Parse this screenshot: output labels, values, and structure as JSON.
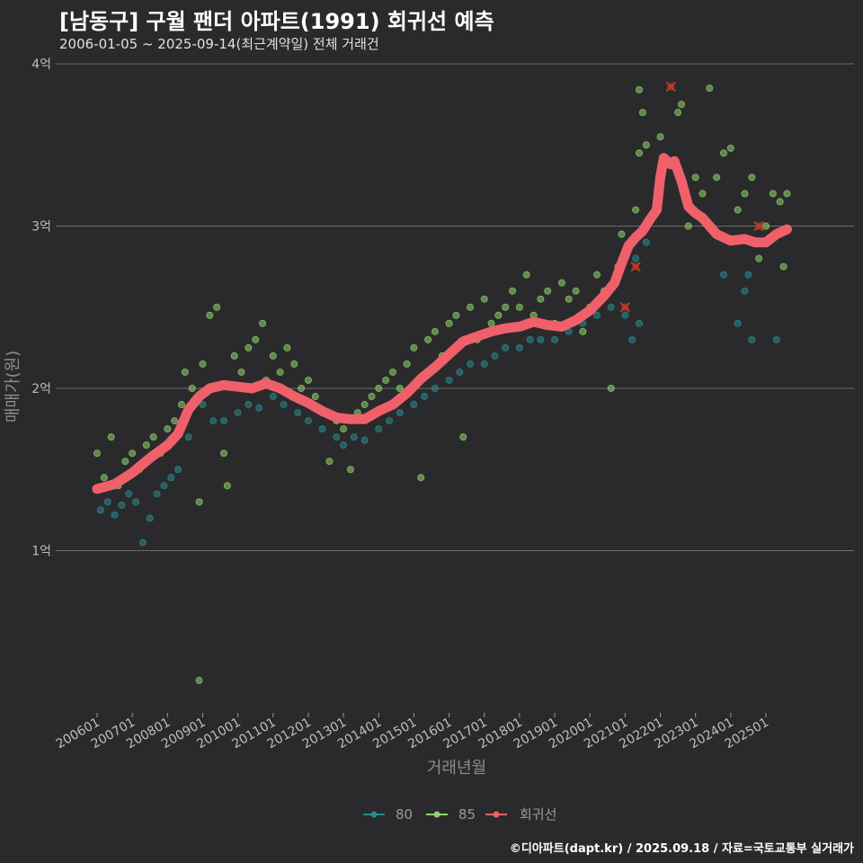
{
  "header": {
    "title": "[남동구] 구월 팬더 아파트(1991) 회귀선 예측",
    "subtitle": "2006-01-05 ~ 2025-09-14(최근계약일) 전체 거래건"
  },
  "footer": {
    "credit": "©디아파트(dapt.kr) / 2025.09.18 / 자료=국토교통부 실거래가"
  },
  "colors": {
    "background": "#2a2a2c",
    "grid": "#6b6b6b",
    "s80": "#2a8a8f",
    "s85": "#8fd46a",
    "regression": "#f0606a"
  },
  "chart_data": {
    "type": "scatter",
    "title": "[남동구] 구월 팬더 아파트(1991) 회귀선 예측",
    "xlabel": "거래년월",
    "ylabel": "매매가(원)",
    "x_range": [
      2006.0,
      2025.8
    ],
    "ylim": [
      0,
      4
    ],
    "y_ticks": [
      {
        "value": 1,
        "label": "1억"
      },
      {
        "value": 2,
        "label": "2억"
      },
      {
        "value": 3,
        "label": "3억"
      },
      {
        "value": 4,
        "label": "4억"
      }
    ],
    "x_ticks": [
      {
        "value": 2006.0,
        "label": "200601"
      },
      {
        "value": 2007.0,
        "label": "200701"
      },
      {
        "value": 2008.0,
        "label": "200801"
      },
      {
        "value": 2009.0,
        "label": "200901"
      },
      {
        "value": 2010.0,
        "label": "201001"
      },
      {
        "value": 2011.0,
        "label": "201101"
      },
      {
        "value": 2012.0,
        "label": "201201"
      },
      {
        "value": 2013.0,
        "label": "201301"
      },
      {
        "value": 2014.0,
        "label": "201401"
      },
      {
        "value": 2015.0,
        "label": "201501"
      },
      {
        "value": 2016.0,
        "label": "201601"
      },
      {
        "value": 2017.0,
        "label": "201701"
      },
      {
        "value": 2018.0,
        "label": "201801"
      },
      {
        "value": 2019.0,
        "label": "201901"
      },
      {
        "value": 2020.0,
        "label": "202001"
      },
      {
        "value": 2021.0,
        "label": "202101"
      },
      {
        "value": 2022.0,
        "label": "202201"
      },
      {
        "value": 2023.0,
        "label": "202301"
      },
      {
        "value": 2024.0,
        "label": "202401"
      },
      {
        "value": 2025.0,
        "label": "202501"
      }
    ],
    "legend": [
      "80",
      "85",
      "회귀선"
    ],
    "series": [
      {
        "name": "80",
        "color": "#2a8a8f",
        "points": [
          [
            2006.1,
            1.25
          ],
          [
            2006.3,
            1.3
          ],
          [
            2006.5,
            1.22
          ],
          [
            2006.7,
            1.28
          ],
          [
            2006.9,
            1.35
          ],
          [
            2007.1,
            1.3
          ],
          [
            2007.3,
            1.05
          ],
          [
            2007.5,
            1.2
          ],
          [
            2007.7,
            1.35
          ],
          [
            2007.9,
            1.4
          ],
          [
            2008.1,
            1.45
          ],
          [
            2008.3,
            1.5
          ],
          [
            2008.6,
            1.7
          ],
          [
            2009.0,
            1.9
          ],
          [
            2009.3,
            1.8
          ],
          [
            2009.6,
            1.8
          ],
          [
            2010.0,
            1.85
          ],
          [
            2010.3,
            1.9
          ],
          [
            2010.6,
            1.88
          ],
          [
            2011.0,
            1.95
          ],
          [
            2011.3,
            1.9
          ],
          [
            2011.7,
            1.85
          ],
          [
            2012.0,
            1.8
          ],
          [
            2012.4,
            1.75
          ],
          [
            2012.8,
            1.7
          ],
          [
            2013.0,
            1.65
          ],
          [
            2013.3,
            1.7
          ],
          [
            2013.6,
            1.68
          ],
          [
            2014.0,
            1.75
          ],
          [
            2014.3,
            1.8
          ],
          [
            2014.6,
            1.85
          ],
          [
            2015.0,
            1.9
          ],
          [
            2015.3,
            1.95
          ],
          [
            2015.6,
            2.0
          ],
          [
            2016.0,
            2.05
          ],
          [
            2016.3,
            2.1
          ],
          [
            2016.6,
            2.15
          ],
          [
            2017.0,
            2.15
          ],
          [
            2017.3,
            2.2
          ],
          [
            2017.6,
            2.25
          ],
          [
            2018.0,
            2.25
          ],
          [
            2018.3,
            2.3
          ],
          [
            2018.6,
            2.3
          ],
          [
            2019.0,
            2.3
          ],
          [
            2019.4,
            2.35
          ],
          [
            2019.8,
            2.4
          ],
          [
            2020.2,
            2.45
          ],
          [
            2020.6,
            2.5
          ],
          [
            2021.0,
            2.45
          ],
          [
            2021.2,
            2.3
          ],
          [
            2021.4,
            2.4
          ],
          [
            2021.3,
            2.8
          ],
          [
            2021.6,
            2.9
          ],
          [
            2023.8,
            2.7
          ],
          [
            2024.2,
            2.4
          ],
          [
            2024.4,
            2.6
          ],
          [
            2024.6,
            2.3
          ],
          [
            2024.5,
            2.7
          ],
          [
            2025.3,
            2.3
          ]
        ]
      },
      {
        "name": "85",
        "color": "#8fd46a",
        "points": [
          [
            2006.0,
            1.6
          ],
          [
            2006.2,
            1.45
          ],
          [
            2006.4,
            1.7
          ],
          [
            2006.6,
            1.4
          ],
          [
            2006.8,
            1.55
          ],
          [
            2007.0,
            1.6
          ],
          [
            2007.2,
            1.5
          ],
          [
            2007.4,
            1.65
          ],
          [
            2007.6,
            1.7
          ],
          [
            2007.8,
            1.6
          ],
          [
            2008.0,
            1.75
          ],
          [
            2008.2,
            1.8
          ],
          [
            2008.4,
            1.9
          ],
          [
            2008.5,
            2.1
          ],
          [
            2008.7,
            2.0
          ],
          [
            2008.9,
            1.3
          ],
          [
            2009.0,
            2.15
          ],
          [
            2009.2,
            2.45
          ],
          [
            2009.4,
            2.5
          ],
          [
            2009.6,
            1.6
          ],
          [
            2009.7,
            1.4
          ],
          [
            2009.9,
            2.2
          ],
          [
            2010.1,
            2.1
          ],
          [
            2010.3,
            2.25
          ],
          [
            2010.5,
            2.3
          ],
          [
            2010.7,
            2.4
          ],
          [
            2010.8,
            2.05
          ],
          [
            2011.0,
            2.2
          ],
          [
            2011.2,
            2.1
          ],
          [
            2011.4,
            2.25
          ],
          [
            2011.6,
            2.15
          ],
          [
            2011.8,
            2.0
          ],
          [
            2012.0,
            2.05
          ],
          [
            2012.2,
            1.95
          ],
          [
            2012.4,
            1.85
          ],
          [
            2012.6,
            1.55
          ],
          [
            2012.8,
            1.8
          ],
          [
            2013.0,
            1.75
          ],
          [
            2013.2,
            1.5
          ],
          [
            2013.4,
            1.85
          ],
          [
            2013.6,
            1.9
          ],
          [
            2013.8,
            1.95
          ],
          [
            2014.0,
            2.0
          ],
          [
            2014.2,
            2.05
          ],
          [
            2014.4,
            2.1
          ],
          [
            2014.6,
            2.0
          ],
          [
            2014.8,
            2.15
          ],
          [
            2015.0,
            2.25
          ],
          [
            2015.2,
            1.45
          ],
          [
            2015.4,
            2.3
          ],
          [
            2015.6,
            2.35
          ],
          [
            2015.8,
            2.2
          ],
          [
            2016.0,
            2.4
          ],
          [
            2016.2,
            2.45
          ],
          [
            2016.4,
            1.7
          ],
          [
            2016.6,
            2.5
          ],
          [
            2016.8,
            2.3
          ],
          [
            2017.0,
            2.55
          ],
          [
            2017.2,
            2.4
          ],
          [
            2017.4,
            2.45
          ],
          [
            2017.6,
            2.5
          ],
          [
            2017.8,
            2.6
          ],
          [
            2018.0,
            2.5
          ],
          [
            2018.2,
            2.7
          ],
          [
            2018.4,
            2.45
          ],
          [
            2018.6,
            2.55
          ],
          [
            2018.8,
            2.6
          ],
          [
            2019.0,
            2.4
          ],
          [
            2019.2,
            2.65
          ],
          [
            2019.4,
            2.55
          ],
          [
            2019.6,
            2.6
          ],
          [
            2019.8,
            2.35
          ],
          [
            2020.0,
            2.5
          ],
          [
            2020.2,
            2.7
          ],
          [
            2020.4,
            2.6
          ],
          [
            2020.6,
            2.0
          ],
          [
            2020.8,
            2.75
          ],
          [
            2020.9,
            2.95
          ],
          [
            2021.0,
            2.85
          ],
          [
            2021.2,
            2.9
          ],
          [
            2021.3,
            3.1
          ],
          [
            2021.4,
            3.45
          ],
          [
            2021.5,
            3.7
          ],
          [
            2021.6,
            3.5
          ],
          [
            2021.4,
            3.84
          ],
          [
            2022.0,
            3.55
          ],
          [
            2022.2,
            3.4
          ],
          [
            2022.5,
            3.7
          ],
          [
            2022.6,
            3.75
          ],
          [
            2022.8,
            3.0
          ],
          [
            2023.0,
            3.3
          ],
          [
            2023.2,
            3.2
          ],
          [
            2023.4,
            3.85
          ],
          [
            2023.6,
            3.3
          ],
          [
            2023.8,
            3.45
          ],
          [
            2024.0,
            3.48
          ],
          [
            2024.2,
            3.1
          ],
          [
            2024.4,
            3.2
          ],
          [
            2024.6,
            3.3
          ],
          [
            2024.8,
            2.8
          ],
          [
            2025.0,
            3.0
          ],
          [
            2025.2,
            3.2
          ],
          [
            2025.4,
            3.15
          ],
          [
            2025.5,
            2.75
          ],
          [
            2025.6,
            3.2
          ],
          [
            2008.9,
            0.2
          ]
        ]
      },
      {
        "name": "회귀선",
        "color": "#f0606a",
        "points": [
          [
            2006.0,
            1.38
          ],
          [
            2006.5,
            1.41
          ],
          [
            2007.0,
            1.48
          ],
          [
            2007.5,
            1.57
          ],
          [
            2008.0,
            1.65
          ],
          [
            2008.3,
            1.72
          ],
          [
            2008.6,
            1.87
          ],
          [
            2008.9,
            1.95
          ],
          [
            2009.2,
            2.0
          ],
          [
            2009.6,
            2.02
          ],
          [
            2010.0,
            2.01
          ],
          [
            2010.4,
            2.0
          ],
          [
            2010.8,
            2.03
          ],
          [
            2011.2,
            2.0
          ],
          [
            2011.6,
            1.95
          ],
          [
            2012.0,
            1.91
          ],
          [
            2012.4,
            1.86
          ],
          [
            2012.8,
            1.82
          ],
          [
            2013.2,
            1.81
          ],
          [
            2013.6,
            1.81
          ],
          [
            2014.0,
            1.86
          ],
          [
            2014.4,
            1.9
          ],
          [
            2014.8,
            1.97
          ],
          [
            2015.2,
            2.06
          ],
          [
            2015.6,
            2.13
          ],
          [
            2016.0,
            2.21
          ],
          [
            2016.4,
            2.29
          ],
          [
            2016.8,
            2.32
          ],
          [
            2017.2,
            2.35
          ],
          [
            2017.6,
            2.37
          ],
          [
            2018.0,
            2.38
          ],
          [
            2018.4,
            2.41
          ],
          [
            2018.8,
            2.39
          ],
          [
            2019.2,
            2.38
          ],
          [
            2019.6,
            2.42
          ],
          [
            2020.0,
            2.48
          ],
          [
            2020.4,
            2.57
          ],
          [
            2020.7,
            2.65
          ],
          [
            2020.9,
            2.77
          ],
          [
            2021.1,
            2.88
          ],
          [
            2021.3,
            2.93
          ],
          [
            2021.5,
            2.97
          ],
          [
            2021.7,
            3.04
          ],
          [
            2021.9,
            3.1
          ],
          [
            2022.0,
            3.3
          ],
          [
            2022.1,
            3.42
          ],
          [
            2022.3,
            3.38
          ],
          [
            2022.4,
            3.4
          ],
          [
            2022.6,
            3.28
          ],
          [
            2022.8,
            3.12
          ],
          [
            2023.0,
            3.08
          ],
          [
            2023.2,
            3.05
          ],
          [
            2023.6,
            2.95
          ],
          [
            2024.0,
            2.91
          ],
          [
            2024.4,
            2.92
          ],
          [
            2024.7,
            2.9
          ],
          [
            2025.0,
            2.9
          ],
          [
            2025.3,
            2.95
          ],
          [
            2025.6,
            2.98
          ]
        ]
      }
    ],
    "highlight_points": [
      [
        2021.0,
        2.5
      ],
      [
        2021.3,
        2.75
      ],
      [
        2022.3,
        3.86
      ],
      [
        2024.8,
        3.0
      ]
    ]
  }
}
